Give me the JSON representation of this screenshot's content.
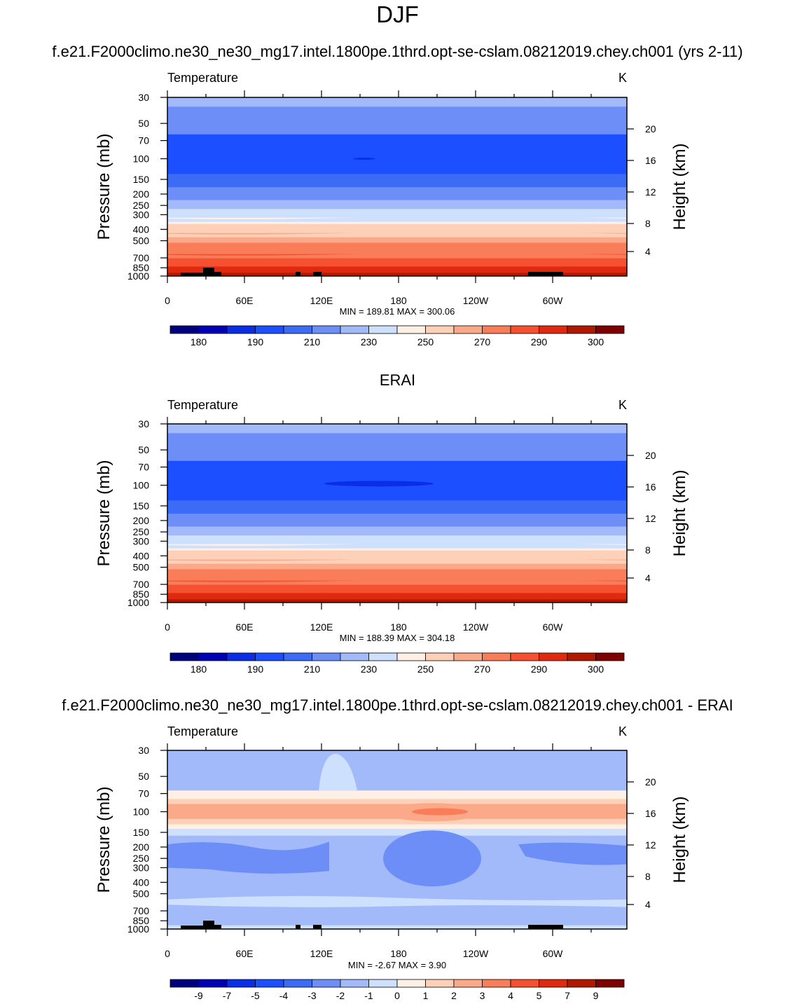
{
  "figure": {
    "title": "DJF",
    "colorbar_colors": [
      "#00007f",
      "#0000b4",
      "#0a2ee6",
      "#1c4fff",
      "#3c6cf5",
      "#6e8ef7",
      "#a3bafa",
      "#cde0fd",
      "#fff0e6",
      "#fdd0b8",
      "#fca98a",
      "#f97d58",
      "#f55030",
      "#e02a10",
      "#b01800",
      "#7f0000"
    ]
  },
  "chart_data": [
    {
      "type": "heatmap",
      "panel_title": "f.e21.F2000climo.ne30_ne30_mg17.intel.1800pe.1thrd.opt-se-cslam.08212019.chey.ch001 (yrs 2-11)",
      "left_label": "Temperature",
      "units": "K",
      "ylabel": "Pressure (mb)",
      "y2label": "Height (km)",
      "x_ticks": [
        "0",
        "60E",
        "120E",
        "180",
        "120W",
        "60W"
      ],
      "y_ticks": [
        "30",
        "50",
        "70",
        "100",
        "150",
        "200",
        "250",
        "300",
        "400",
        "500",
        "700",
        "850",
        "1000"
      ],
      "y2_ticks": [
        "20",
        "16",
        "12",
        "8",
        "4"
      ],
      "stats": "MIN = 189.81  MAX = 300.06",
      "colorbar_labels": [
        "180",
        "190",
        "210",
        "230",
        "250",
        "270",
        "290",
        "300"
      ]
    },
    {
      "type": "heatmap",
      "panel_title": "ERAI",
      "left_label": "Temperature",
      "units": "K",
      "ylabel": "Pressure (mb)",
      "y2label": "Height (km)",
      "x_ticks": [
        "0",
        "60E",
        "120E",
        "180",
        "120W",
        "60W"
      ],
      "y_ticks": [
        "30",
        "50",
        "70",
        "100",
        "150",
        "200",
        "250",
        "300",
        "400",
        "500",
        "700",
        "850",
        "1000"
      ],
      "y2_ticks": [
        "20",
        "16",
        "12",
        "8",
        "4"
      ],
      "stats": "MIN = 188.39  MAX = 304.18",
      "colorbar_labels": [
        "180",
        "190",
        "210",
        "230",
        "250",
        "270",
        "290",
        "300"
      ]
    },
    {
      "type": "heatmap",
      "panel_title": "f.e21.F2000climo.ne30_ne30_mg17.intel.1800pe.1thrd.opt-se-cslam.08212019.chey.ch001 - ERAI",
      "left_label": "Temperature",
      "units": "K",
      "ylabel": "Pressure (mb)",
      "y2label": "Height (km)",
      "x_ticks": [
        "0",
        "60E",
        "120E",
        "180",
        "120W",
        "60W"
      ],
      "y_ticks": [
        "30",
        "50",
        "70",
        "100",
        "150",
        "200",
        "250",
        "300",
        "400",
        "500",
        "700",
        "850",
        "1000"
      ],
      "y2_ticks": [
        "20",
        "16",
        "12",
        "8",
        "4"
      ],
      "stats": "MIN =  -2.67  MAX =   3.90",
      "colorbar_labels": [
        "-9",
        "-7",
        "-5",
        "-4",
        "-3",
        "-2",
        "-1",
        "0",
        "1",
        "2",
        "3",
        "4",
        "5",
        "7",
        "9"
      ]
    }
  ]
}
